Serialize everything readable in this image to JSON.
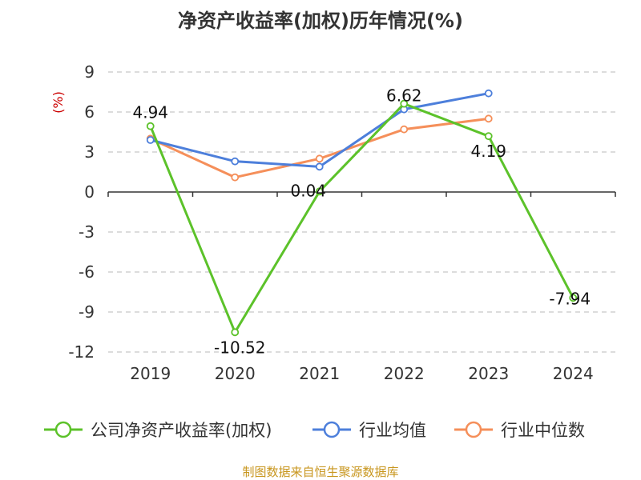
{
  "chart_data": {
    "type": "line",
    "title": "净资产收益率(加权)历年情况(%)",
    "ylabel": "(%)",
    "xlabel": "",
    "categories": [
      "2019",
      "2020",
      "2021",
      "2022",
      "2023",
      "2024"
    ],
    "ylim": [
      -12,
      9
    ],
    "yticks": [
      9,
      6,
      3,
      0,
      -3,
      -6,
      -9,
      -12
    ],
    "grid": true,
    "legend_position": "bottom",
    "series": [
      {
        "name": "公司净资产收益率(加权)",
        "color": "#5cc22a",
        "values": [
          4.94,
          -10.52,
          0.04,
          6.62,
          4.19,
          -7.94
        ],
        "labels": [
          "4.94",
          "-10.52",
          "0.04",
          "6.62",
          "4.19",
          "-7.94"
        ]
      },
      {
        "name": "行业均值",
        "color": "#4d7fdb",
        "values": [
          3.9,
          2.3,
          1.9,
          6.2,
          7.4,
          null
        ]
      },
      {
        "name": "行业中位数",
        "color": "#f58f5a",
        "values": [
          4.0,
          1.1,
          2.5,
          4.7,
          5.5,
          null
        ]
      }
    ],
    "source": "制图数据来自恒生聚源数据库"
  }
}
